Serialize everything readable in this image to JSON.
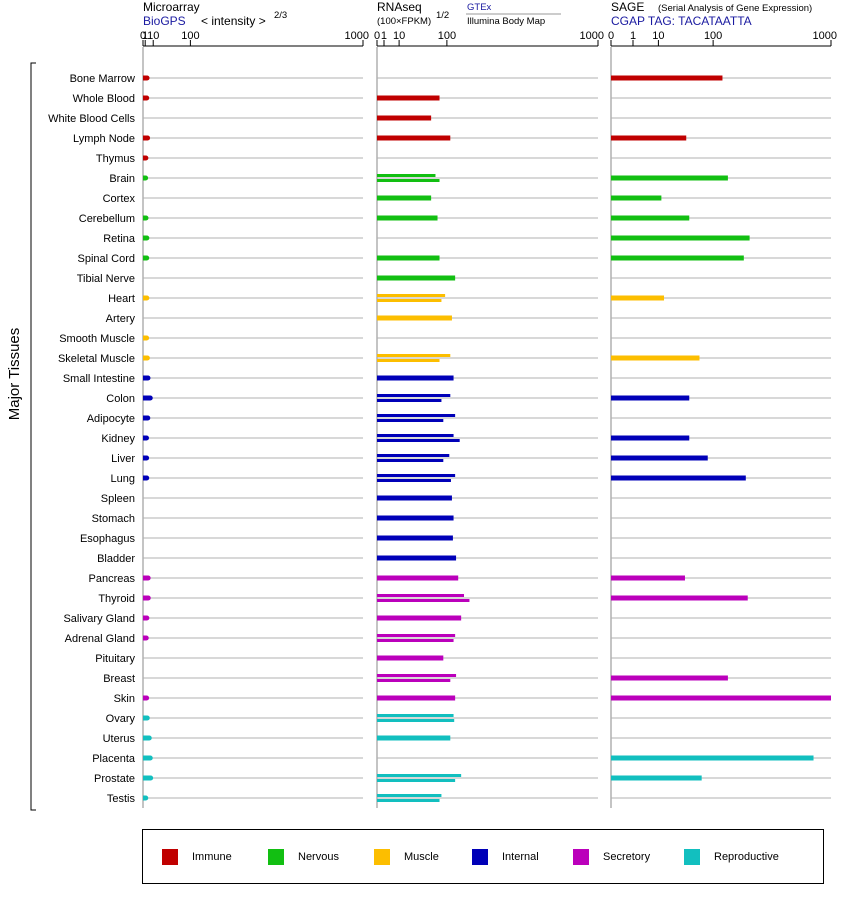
{
  "chart_data": {
    "type": "bar",
    "orientation": "horizontal",
    "y_axis_title": "Major Tissues",
    "categories": [
      "Bone Marrow",
      "Whole Blood",
      "White Blood Cells",
      "Lymph Node",
      "Thymus",
      "Brain",
      "Cortex",
      "Cerebellum",
      "Retina",
      "Spinal Cord",
      "Tibial Nerve",
      "Heart",
      "Artery",
      "Smooth Muscle",
      "Skeletal Muscle",
      "Small Intestine",
      "Colon",
      "Adipocyte",
      "Kidney",
      "Liver",
      "Lung",
      "Spleen",
      "Stomach",
      "Esophagus",
      "Bladder",
      "Pancreas",
      "Thyroid",
      "Salivary Gland",
      "Adrenal Gland",
      "Pituitary",
      "Breast",
      "Skin",
      "Ovary",
      "Uterus",
      "Placenta",
      "Prostate",
      "Testis"
    ],
    "groups": {
      "Immune": [
        "Bone Marrow",
        "Whole Blood",
        "White Blood Cells",
        "Lymph Node",
        "Thymus"
      ],
      "Nervous": [
        "Brain",
        "Cortex",
        "Cerebellum",
        "Retina",
        "Spinal Cord",
        "Tibial Nerve"
      ],
      "Muscle": [
        "Heart",
        "Artery",
        "Smooth Muscle",
        "Skeletal Muscle"
      ],
      "Internal": [
        "Small Intestine",
        "Colon",
        "Adipocyte",
        "Kidney",
        "Liver",
        "Lung",
        "Spleen",
        "Stomach",
        "Esophagus",
        "Bladder"
      ],
      "Secretory": [
        "Pancreas",
        "Thyroid",
        "Salivary Gland",
        "Adrenal Gland",
        "Pituitary",
        "Breast",
        "Skin"
      ],
      "Reproductive": [
        "Ovary",
        "Uterus",
        "Placenta",
        "Prostate",
        "Testis"
      ]
    },
    "panels": [
      {
        "title": "Microarray",
        "subtitle": "BioGPS",
        "scale_note": "< intensity >",
        "scale_exp": "2/3",
        "axis": {
          "ticks": [
            0,
            1,
            10,
            100,
            1000
          ],
          "tick_labels": [
            "0",
            "1",
            "10",
            "100",
            "1000"
          ],
          "range": [
            0,
            1000
          ],
          "scale": "power",
          "exponent": 0.6667
        },
        "values": {
          "Bone Marrow": [
            2.5
          ],
          "Whole Blood": [
            2.2
          ],
          "Lymph Node": [
            3.0
          ],
          "Thymus": [
            1.5
          ],
          "Brain": [
            1.3
          ],
          "Cerebellum": [
            1.6
          ],
          "Retina": [
            2.3
          ],
          "Spinal Cord": [
            2.2
          ],
          "Heart": [
            2.3
          ],
          "Smooth Muscle": [
            2.1
          ],
          "Skeletal Muscle": [
            2.8
          ],
          "Small Intestine": [
            3.4
          ],
          "Colon": [
            6.0
          ],
          "Adipocyte": [
            3.2
          ],
          "Kidney": [
            2.0
          ],
          "Liver": [
            2.1
          ],
          "Lung": [
            2.2
          ],
          "Pancreas": [
            3.6
          ],
          "Thyroid": [
            3.7
          ],
          "Salivary Gland": [
            2.3
          ],
          "Adrenal Gland": [
            1.8
          ],
          "Skin": [
            2.1
          ],
          "Ovary": [
            2.7
          ],
          "Uterus": [
            4.8
          ],
          "Placenta": [
            6.0
          ],
          "Prostate": [
            6.5
          ],
          "Testis": [
            1.4
          ]
        }
      },
      {
        "title": "RNAseq",
        "subtitle": "(100×FPKM)",
        "scale_exp": "1/2",
        "source_label": "GTEx",
        "source_sublabel": "Illumina Body Map",
        "axis": {
          "ticks": [
            0,
            1,
            10,
            100,
            1000
          ],
          "tick_labels": [
            "0",
            "1",
            "10",
            "100",
            "1000"
          ],
          "range": [
            0,
            1000
          ],
          "scale": "power",
          "exponent": 0.5
        },
        "values": {
          "Whole Blood": [
            80
          ],
          "White Blood Cells": [
            60
          ],
          "Lymph Node": [
            110
          ],
          "Brain": [
            70,
            80
          ],
          "Cortex": [
            60
          ],
          "Cerebellum": [
            75
          ],
          "Spinal Cord": [
            80
          ],
          "Tibial Nerve": [
            125
          ],
          "Heart": [
            95,
            85
          ],
          "Artery": [
            115
          ],
          "Skeletal Muscle": [
            110,
            80
          ],
          "Small Intestine": [
            120
          ],
          "Colon": [
            110,
            85
          ],
          "Adipocyte": [
            125,
            90
          ],
          "Kidney": [
            120,
            140
          ],
          "Liver": [
            107,
            90
          ],
          "Lung": [
            125,
            112
          ],
          "Spleen": [
            115
          ],
          "Stomach": [
            120
          ],
          "Esophagus": [
            118
          ],
          "Bladder": [
            128
          ],
          "Pancreas": [
            135
          ],
          "Thyroid": [
            155,
            175
          ],
          "Salivary Gland": [
            145
          ],
          "Adrenal Gland": [
            125,
            120
          ],
          "Pituitary": [
            90
          ],
          "Breast": [
            128,
            110
          ],
          "Skin": [
            125
          ],
          "Ovary": [
            120,
            122
          ],
          "Uterus": [
            110
          ],
          "Prostate": [
            145,
            125
          ],
          "Testis": [
            85,
            80
          ]
        }
      },
      {
        "title": "SAGE",
        "title_note": "(Serial Analysis of Gene Expression)",
        "subtitle": "CGAP TAG: TACATAATTA",
        "axis": {
          "ticks": [
            0,
            1,
            10,
            100,
            1000
          ],
          "tick_labels": [
            "0",
            "1",
            "10",
            "100",
            "1000"
          ],
          "range": [
            0,
            1000
          ],
          "scale": "power",
          "exponent": 0.3333
        },
        "values": {
          "Bone Marrow": [
            130
          ],
          "Lymph Node": [
            40
          ],
          "Brain": [
            150
          ],
          "Cortex": [
            12
          ],
          "Cerebellum": [
            45
          ],
          "Retina": [
            250
          ],
          "Spinal Cord": [
            220
          ],
          "Heart": [
            14
          ],
          "Skeletal Muscle": [
            65
          ],
          "Colon": [
            45
          ],
          "Kidney": [
            45
          ],
          "Liver": [
            85
          ],
          "Lung": [
            230
          ],
          "Pancreas": [
            38
          ],
          "Thyroid": [
            240
          ],
          "Breast": [
            150
          ],
          "Skin": [
            1000
          ],
          "Placenta": [
            780
          ],
          "Prostate": [
            70
          ]
        }
      }
    ],
    "legend": [
      {
        "name": "Immune",
        "color": "#c00000"
      },
      {
        "name": "Nervous",
        "color": "#12bf12"
      },
      {
        "name": "Muscle",
        "color": "#fcbe00"
      },
      {
        "name": "Internal",
        "color": "#0000b8"
      },
      {
        "name": "Secretory",
        "color": "#bb00bb"
      },
      {
        "name": "Reproductive",
        "color": "#12bfbf"
      }
    ]
  }
}
